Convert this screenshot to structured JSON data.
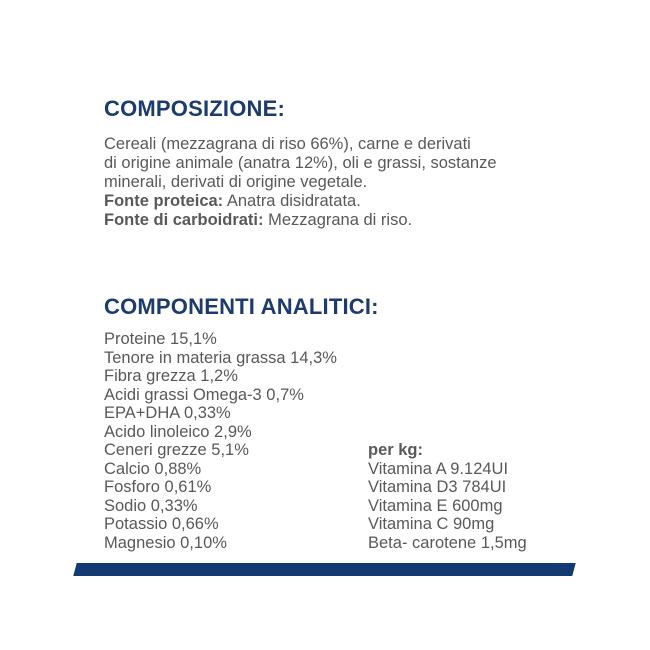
{
  "colors": {
    "heading_navy": "#1d3c6e",
    "body_gray": "#58595b",
    "bar_navy": "#123a73",
    "background": "#ffffff"
  },
  "composition": {
    "title": "COMPOSIZIONE:",
    "body_lines": [
      "Cereali (mezzagrana di riso 66%), carne e derivati",
      "di origine animale (anatra 12%), oli e grassi, sostanze",
      "minerali, derivati di origine vegetale."
    ],
    "protein_source_label": "Fonte proteica:",
    "protein_source_value": "Anatra disidratata.",
    "carb_source_label": "Fonte di carboidrati:",
    "carb_source_value": "Mezzagrana di riso."
  },
  "analytical": {
    "title": "COMPONENTI ANALITICI:",
    "items": [
      "Proteine 15,1%",
      "Tenore in materia grassa 14,3%",
      "Fibra grezza 1,2%",
      "Acidi grassi Omega-3 0,7%",
      "EPA+DHA 0,33%",
      "Acido linoleico 2,9%",
      "Ceneri grezze 5,1%",
      "Calcio 0,88%",
      "Fosforo 0,61%",
      "Sodio 0,33%",
      "Potassio 0,66%",
      "Magnesio 0,10%"
    ],
    "per_kg": {
      "label": "per kg:",
      "items": [
        "Vitamina A 9.124UI",
        "Vitamina D3 784UI",
        "Vitamina E 600mg",
        "Vitamina C 90mg",
        "Beta- carotene 1,5mg"
      ]
    }
  }
}
